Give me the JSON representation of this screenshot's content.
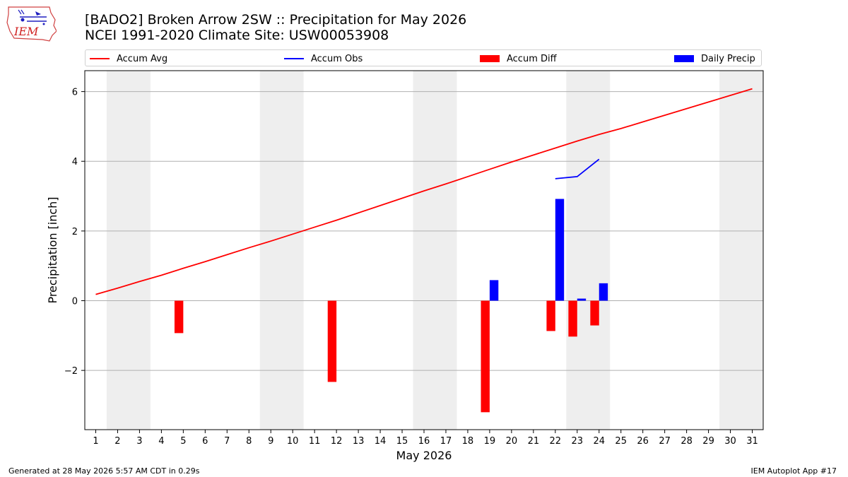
{
  "header": {
    "title_line1": "[BADO2] Broken Arrow 2SW :: Precipitation for May 2026",
    "title_line2": "NCEI 1991-2020 Climate Site: USW00053908",
    "logo_text": "IEM"
  },
  "legend": {
    "items": [
      {
        "label": "Accum Avg",
        "type": "line",
        "color": "#ff0000"
      },
      {
        "label": "Accum Obs",
        "type": "line",
        "color": "#0000ff"
      },
      {
        "label": "Accum Diff",
        "type": "patch",
        "color": "#ff0000"
      },
      {
        "label": "Daily Precip",
        "type": "patch",
        "color": "#0000ff"
      }
    ]
  },
  "footer": {
    "left": "Generated at 28 May 2026 5:57 AM CDT in 0.29s",
    "right": "IEM Autoplot App #17"
  },
  "chart_data": {
    "type": "bar",
    "xlabel": "May 2026",
    "ylabel": "Precipitation [inch]",
    "xlim": [
      0.5,
      31.5
    ],
    "ylim": [
      -3.7,
      6.6
    ],
    "yticks": [
      -2,
      0,
      2,
      4,
      6
    ],
    "ytick_labels": [
      "−2",
      "0",
      "2",
      "4",
      "6"
    ],
    "days": [
      1,
      2,
      3,
      4,
      5,
      6,
      7,
      8,
      9,
      10,
      11,
      12,
      13,
      14,
      15,
      16,
      17,
      18,
      19,
      20,
      21,
      22,
      23,
      24,
      25,
      26,
      27,
      28,
      29,
      30,
      31
    ],
    "grid": "horizontal",
    "weekend_shading": [
      [
        1.5,
        3.5
      ],
      [
        8.5,
        10.5
      ],
      [
        15.5,
        17.5
      ],
      [
        22.5,
        24.5
      ],
      [
        29.5,
        31.5
      ]
    ],
    "series": [
      {
        "name": "Accum Avg",
        "type": "line",
        "color": "#ff0000",
        "x": [
          1,
          2,
          3,
          4,
          5,
          6,
          7,
          8,
          9,
          10,
          11,
          12,
          13,
          14,
          15,
          16,
          17,
          18,
          19,
          20,
          21,
          22,
          23,
          24,
          25,
          26,
          27,
          28,
          29,
          30,
          31
        ],
        "values": [
          0.18,
          0.36,
          0.55,
          0.73,
          0.93,
          1.12,
          1.32,
          1.52,
          1.71,
          1.91,
          2.11,
          2.31,
          2.52,
          2.73,
          2.94,
          3.15,
          3.35,
          3.56,
          3.77,
          3.98,
          4.18,
          4.38,
          4.58,
          4.77,
          4.94,
          5.13,
          5.32,
          5.51,
          5.7,
          5.89,
          6.08
        ]
      },
      {
        "name": "Accum Obs",
        "type": "line",
        "color": "#0000ff",
        "x": [
          22,
          23,
          24
        ],
        "values": [
          3.5,
          3.56,
          4.06
        ]
      },
      {
        "name": "Accum Diff",
        "type": "bar",
        "color": "#ff0000",
        "x": [
          5,
          12,
          19,
          22,
          23,
          24
        ],
        "values": [
          -0.93,
          -2.33,
          -3.2,
          -0.87,
          -1.03,
          -0.71
        ]
      },
      {
        "name": "Daily Precip",
        "type": "bar",
        "color": "#0000ff",
        "x": [
          19,
          22,
          23,
          24
        ],
        "values": [
          0.59,
          2.92,
          0.06,
          0.5
        ]
      }
    ]
  }
}
